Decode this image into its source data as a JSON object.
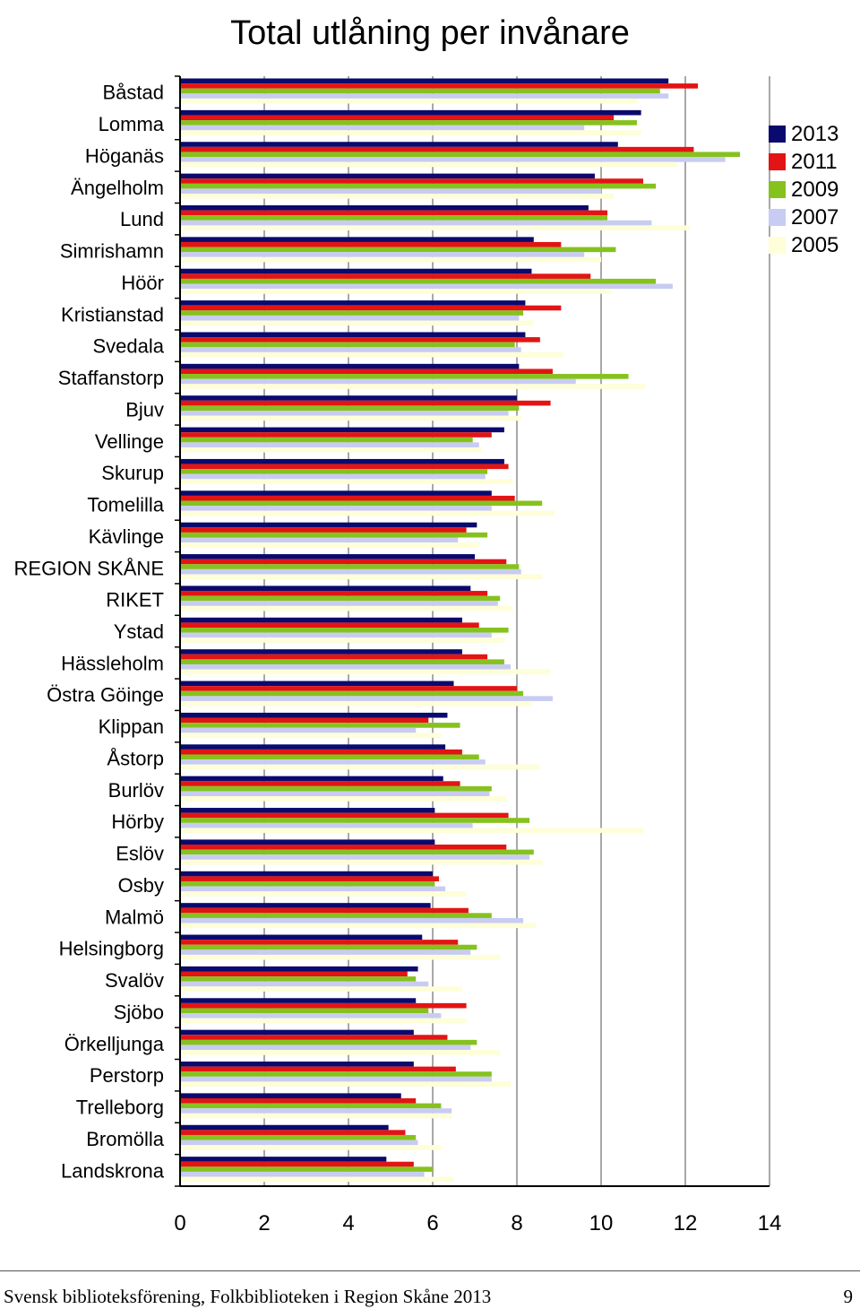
{
  "chart_data": {
    "type": "bar",
    "orientation": "horizontal",
    "title": "Total utlåning per invånare",
    "xlabel": "",
    "ylabel": "",
    "xlim": [
      0,
      14
    ],
    "x_ticks": [
      "0",
      "2",
      "4",
      "6",
      "8",
      "10",
      "12",
      "14"
    ],
    "grid": true,
    "legend_position": "right",
    "categories": [
      "Båstad",
      "Lomma",
      "Höganäs",
      "Ängelholm",
      "Lund",
      "Simrishamn",
      "Höör",
      "Kristianstad",
      "Svedala",
      "Staffanstorp",
      "Bjuv",
      "Vellinge",
      "Skurup",
      "Tomelilla",
      "Kävlinge",
      "REGION SKÅNE",
      "RIKET",
      "Ystad",
      "Hässleholm",
      "Östra Göinge",
      "Klippan",
      "Åstorp",
      "Burlöv",
      "Hörby",
      "Eslöv",
      "Osby",
      "Malmö",
      "Helsingborg",
      "Svalöv",
      "Sjöbo",
      "Örkelljunga",
      "Perstorp",
      "Trelleborg",
      "Bromölla",
      "Landskrona"
    ],
    "series": [
      {
        "name": "2013",
        "color": "#0a0a6e",
        "values": [
          11.6,
          10.95,
          10.4,
          9.85,
          9.7,
          8.4,
          8.35,
          8.2,
          8.2,
          8.05,
          8.0,
          7.7,
          7.7,
          7.4,
          7.05,
          7.0,
          6.9,
          6.7,
          6.7,
          6.5,
          6.35,
          6.3,
          6.25,
          6.05,
          6.05,
          6.0,
          5.95,
          5.75,
          5.65,
          5.6,
          5.55,
          5.55,
          5.25,
          4.95,
          4.9
        ]
      },
      {
        "name": "2011",
        "color": "#e31414",
        "values": [
          12.3,
          10.3,
          12.2,
          11.0,
          10.15,
          9.05,
          9.75,
          9.05,
          8.55,
          8.85,
          8.8,
          7.4,
          7.8,
          7.95,
          6.8,
          7.75,
          7.3,
          7.1,
          7.3,
          8.0,
          5.9,
          6.7,
          6.65,
          7.8,
          7.75,
          6.15,
          6.85,
          6.6,
          5.4,
          6.8,
          6.35,
          6.55,
          5.6,
          5.35,
          5.55
        ]
      },
      {
        "name": "2009",
        "color": "#86c21e",
        "values": [
          11.4,
          10.85,
          13.3,
          11.3,
          10.15,
          10.35,
          11.3,
          8.15,
          7.95,
          10.65,
          8.05,
          6.95,
          7.3,
          8.6,
          7.3,
          8.05,
          7.6,
          7.8,
          7.7,
          8.15,
          6.65,
          7.1,
          7.4,
          8.3,
          8.4,
          6.05,
          7.4,
          7.05,
          5.6,
          5.9,
          7.05,
          7.4,
          6.2,
          5.6,
          6.0
        ]
      },
      {
        "name": "2007",
        "color": "#c8ccf2",
        "values": [
          11.6,
          9.6,
          12.95,
          10.0,
          11.2,
          9.6,
          11.7,
          8.05,
          8.1,
          9.4,
          7.8,
          7.1,
          7.25,
          7.4,
          6.6,
          8.1,
          7.55,
          7.4,
          7.85,
          8.85,
          5.6,
          7.25,
          7.35,
          6.95,
          8.3,
          6.3,
          8.15,
          6.9,
          5.9,
          6.2,
          6.9,
          7.4,
          6.45,
          5.65,
          5.8
        ]
      },
      {
        "name": "2005",
        "color": "#fefed8",
        "values": [
          10.85,
          10.95,
          11.8,
          10.3,
          12.1,
          10.0,
          10.25,
          8.4,
          9.1,
          11.05,
          8.1,
          7.15,
          7.9,
          8.9,
          7.1,
          8.6,
          7.9,
          7.7,
          8.8,
          8.35,
          6.2,
          8.55,
          7.75,
          11.0,
          8.6,
          6.8,
          8.45,
          7.6,
          6.7,
          6.8,
          7.6,
          7.85,
          6.45,
          6.2,
          6.5
        ]
      }
    ]
  },
  "footer": {
    "publication": "Svensk biblioteksförening, Folkbiblioteken i Region Skåne 2013",
    "page_number": "9"
  }
}
